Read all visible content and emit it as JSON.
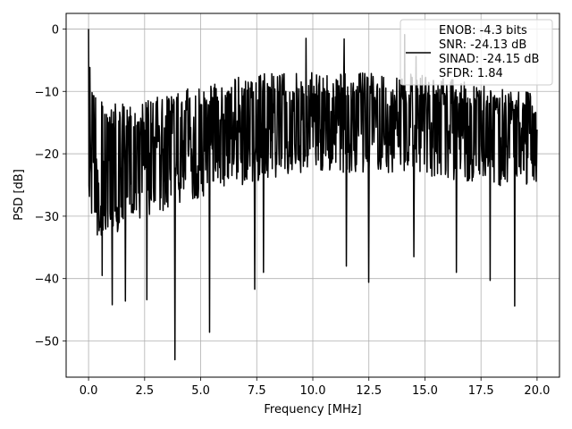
{
  "chart_data": {
    "type": "line",
    "title": "",
    "xlabel": "Frequency [MHz]",
    "ylabel": "PSD [dB]",
    "xlim": [
      -1.0,
      21.0
    ],
    "ylim": [
      -55.8,
      2.5
    ],
    "x_ticks": [
      0.0,
      2.5,
      5.0,
      7.5,
      10.0,
      12.5,
      15.0,
      17.5,
      20.0
    ],
    "x_tick_labels": [
      "0.0",
      "2.5",
      "5.0",
      "7.5",
      "10.0",
      "12.5",
      "15.0",
      "17.5",
      "20.0"
    ],
    "y_ticks": [
      0,
      -10,
      -20,
      -30,
      -40,
      -50
    ],
    "y_tick_labels": [
      "0",
      "−10",
      "−20",
      "−30",
      "−40",
      "−50"
    ],
    "grid": true,
    "legend_position": "top-right",
    "series": [
      {
        "name": "ENOB: -4.3 bits\nSNR: -24.13 dB\nSINAD: -24.15 dB\nSFDR: 1.84",
        "color": "#000000",
        "x_range": [
          0.0,
          20.0
        ],
        "points": 1024,
        "band": [
          {
            "x": 0.0,
            "top": 0.0,
            "mid": -20,
            "low": -30
          },
          {
            "x": 0.2,
            "top": -9,
            "mid": -20,
            "low": -31
          },
          {
            "x": 0.5,
            "top": -11,
            "mid": -21,
            "low": -33
          },
          {
            "x": 1.0,
            "top": -12,
            "mid": -21,
            "low": -34
          },
          {
            "x": 2.0,
            "top": -12,
            "mid": -20,
            "low": -31
          },
          {
            "x": 3.0,
            "top": -11,
            "mid": -19,
            "low": -30
          },
          {
            "x": 4.0,
            "top": -10,
            "mid": -18,
            "low": -28
          },
          {
            "x": 5.0,
            "top": -9,
            "mid": -17,
            "low": -27
          },
          {
            "x": 6.0,
            "top": -8,
            "mid": -16,
            "low": -26
          },
          {
            "x": 8.0,
            "top": -7,
            "mid": -15,
            "low": -24
          },
          {
            "x": 10.0,
            "top": -7,
            "mid": -14,
            "low": -23
          },
          {
            "x": 12.0,
            "top": -7,
            "mid": -14,
            "low": -23
          },
          {
            "x": 14.0,
            "top": -7,
            "mid": -14,
            "low": -23
          },
          {
            "x": 16.0,
            "top": -8,
            "mid": -15,
            "low": -24
          },
          {
            "x": 18.0,
            "top": -9,
            "mid": -16,
            "low": -25
          },
          {
            "x": 20.0,
            "top": -10,
            "mid": -17,
            "low": -26
          }
        ],
        "notable_points": [
          {
            "x": 0.0,
            "y": 0.0
          },
          {
            "x": 0.4,
            "y": -33.0
          },
          {
            "x": 0.6,
            "y": -39.5
          },
          {
            "x": 1.05,
            "y": -44.2
          },
          {
            "x": 1.65,
            "y": -43.6
          },
          {
            "x": 2.6,
            "y": -43.4
          },
          {
            "x": 3.85,
            "y": -53.0
          },
          {
            "x": 5.4,
            "y": -48.6
          },
          {
            "x": 7.4,
            "y": -41.7
          },
          {
            "x": 7.8,
            "y": -39.0
          },
          {
            "x": 11.5,
            "y": -38.0
          },
          {
            "x": 12.5,
            "y": -40.6
          },
          {
            "x": 14.5,
            "y": -36.5
          },
          {
            "x": 16.4,
            "y": -39.0
          },
          {
            "x": 17.9,
            "y": -40.3
          },
          {
            "x": 19.0,
            "y": -44.4
          },
          {
            "x": 11.4,
            "y": -1.6
          },
          {
            "x": 14.1,
            "y": -0.9
          },
          {
            "x": 14.6,
            "y": -4.4
          },
          {
            "x": 9.7,
            "y": -1.5
          }
        ]
      }
    ]
  }
}
